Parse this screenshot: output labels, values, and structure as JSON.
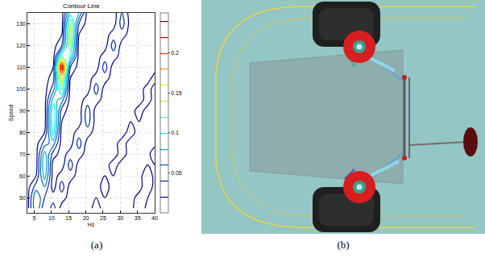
{
  "chart_data": {
    "type": "contour",
    "title": "Contour Line",
    "x_label": "Hz",
    "y_label": "Speed",
    "x": [
      3,
      5.5,
      8,
      10.5,
      13,
      15.5,
      18,
      20.5,
      23,
      25.5,
      28,
      30.5,
      33,
      35.5,
      38,
      40
    ],
    "y": [
      45,
      50,
      55,
      60,
      65,
      70,
      75,
      80,
      85,
      90,
      95,
      100,
      105,
      110,
      115,
      120,
      125,
      130,
      135
    ],
    "z": [
      [
        0.01,
        0.08,
        0.02,
        0.05,
        0.01,
        0.01,
        0.01,
        0.01,
        0.03,
        0.01,
        0.01,
        0.01,
        0.01,
        0.04,
        0.01,
        0.01
      ],
      [
        0.01,
        0.08,
        0.04,
        0.03,
        0.03,
        0.01,
        0.01,
        0.01,
        0.02,
        0.02,
        0.01,
        0.01,
        0.01,
        0.03,
        0.02,
        0.01
      ],
      [
        0.01,
        0.05,
        0.06,
        0.01,
        0.05,
        0.01,
        0.01,
        0.01,
        0.01,
        0.03,
        0.01,
        0.01,
        0.01,
        0.01,
        0.04,
        0.01
      ],
      [
        0.01,
        0.02,
        0.09,
        0.01,
        0.03,
        0.03,
        0.01,
        0.01,
        0.01,
        0.02,
        0.02,
        0.01,
        0.01,
        0.01,
        0.04,
        0.01
      ],
      [
        0.01,
        0.01,
        0.1,
        0.01,
        0.01,
        0.05,
        0.01,
        0.01,
        0.01,
        0.01,
        0.03,
        0.01,
        0.01,
        0.01,
        0.02,
        0.02
      ],
      [
        0.01,
        0.01,
        0.09,
        0.03,
        0.01,
        0.03,
        0.03,
        0.01,
        0.01,
        0.01,
        0.01,
        0.03,
        0.01,
        0.01,
        0.01,
        0.04
      ],
      [
        0.01,
        0.01,
        0.05,
        0.07,
        0.01,
        0.01,
        0.05,
        0.01,
        0.01,
        0.01,
        0.01,
        0.03,
        0.01,
        0.01,
        0.01,
        0.01
      ],
      [
        0.01,
        0.01,
        0.02,
        0.11,
        0.01,
        0.01,
        0.03,
        0.03,
        0.01,
        0.01,
        0.01,
        0.01,
        0.03,
        0.01,
        0.01,
        0.01
      ],
      [
        0.01,
        0.01,
        0.01,
        0.12,
        0.02,
        0.01,
        0.01,
        0.05,
        0.01,
        0.01,
        0.01,
        0.01,
        0.02,
        0.02,
        0.01,
        0.01
      ],
      [
        0.01,
        0.01,
        0.01,
        0.12,
        0.03,
        0.01,
        0.01,
        0.05,
        0.01,
        0.01,
        0.01,
        0.01,
        0.01,
        0.03,
        0.01,
        0.01
      ],
      [
        0.01,
        0.01,
        0.01,
        0.09,
        0.07,
        0.01,
        0.01,
        0.03,
        0.03,
        0.01,
        0.01,
        0.01,
        0.01,
        0.01,
        0.03,
        0.01
      ],
      [
        0.01,
        0.01,
        0.01,
        0.05,
        0.13,
        0.01,
        0.01,
        0.01,
        0.05,
        0.01,
        0.01,
        0.01,
        0.01,
        0.01,
        0.03,
        0.01
      ],
      [
        0.01,
        0.01,
        0.01,
        0.03,
        0.16,
        0.02,
        0.01,
        0.01,
        0.03,
        0.03,
        0.01,
        0.01,
        0.01,
        0.01,
        0.01,
        0.03
      ],
      [
        0.01,
        0.01,
        0.01,
        0.02,
        0.24,
        0.04,
        0.01,
        0.01,
        0.01,
        0.05,
        0.01,
        0.01,
        0.01,
        0.01,
        0.01,
        0.01
      ],
      [
        0.01,
        0.01,
        0.01,
        0.01,
        0.12,
        0.1,
        0.01,
        0.01,
        0.01,
        0.03,
        0.03,
        0.01,
        0.01,
        0.01,
        0.01,
        0.01
      ],
      [
        0.01,
        0.01,
        0.01,
        0.01,
        0.04,
        0.14,
        0.01,
        0.01,
        0.01,
        0.01,
        0.05,
        0.01,
        0.01,
        0.01,
        0.01,
        0.01
      ],
      [
        0.01,
        0.01,
        0.01,
        0.01,
        0.02,
        0.15,
        0.02,
        0.01,
        0.01,
        0.01,
        0.03,
        0.03,
        0.01,
        0.01,
        0.01,
        0.01
      ],
      [
        0.01,
        0.01,
        0.01,
        0.01,
        0.01,
        0.14,
        0.04,
        0.01,
        0.01,
        0.01,
        0.01,
        0.05,
        0.01,
        0.01,
        0.01,
        0.01
      ],
      [
        0.01,
        0.01,
        0.01,
        0.01,
        0.01,
        0.09,
        0.08,
        0.01,
        0.01,
        0.01,
        0.01,
        0.04,
        0.01,
        0.01,
        0.01,
        0.01
      ]
    ],
    "xlim": [
      3,
      40
    ],
    "xticks": [
      5,
      10,
      15,
      20,
      25,
      30,
      35,
      40
    ],
    "ylim": [
      43,
      135
    ],
    "yticks": [
      50,
      60,
      70,
      80,
      90,
      100,
      110,
      120,
      130
    ],
    "grid": true,
    "colorbar": {
      "range": [
        0,
        0.25
      ],
      "ticks": [
        0.05,
        0.1,
        0.15,
        0.2
      ]
    }
  },
  "figure": {
    "panel_labels": [
      "(a)",
      "(b)"
    ]
  }
}
